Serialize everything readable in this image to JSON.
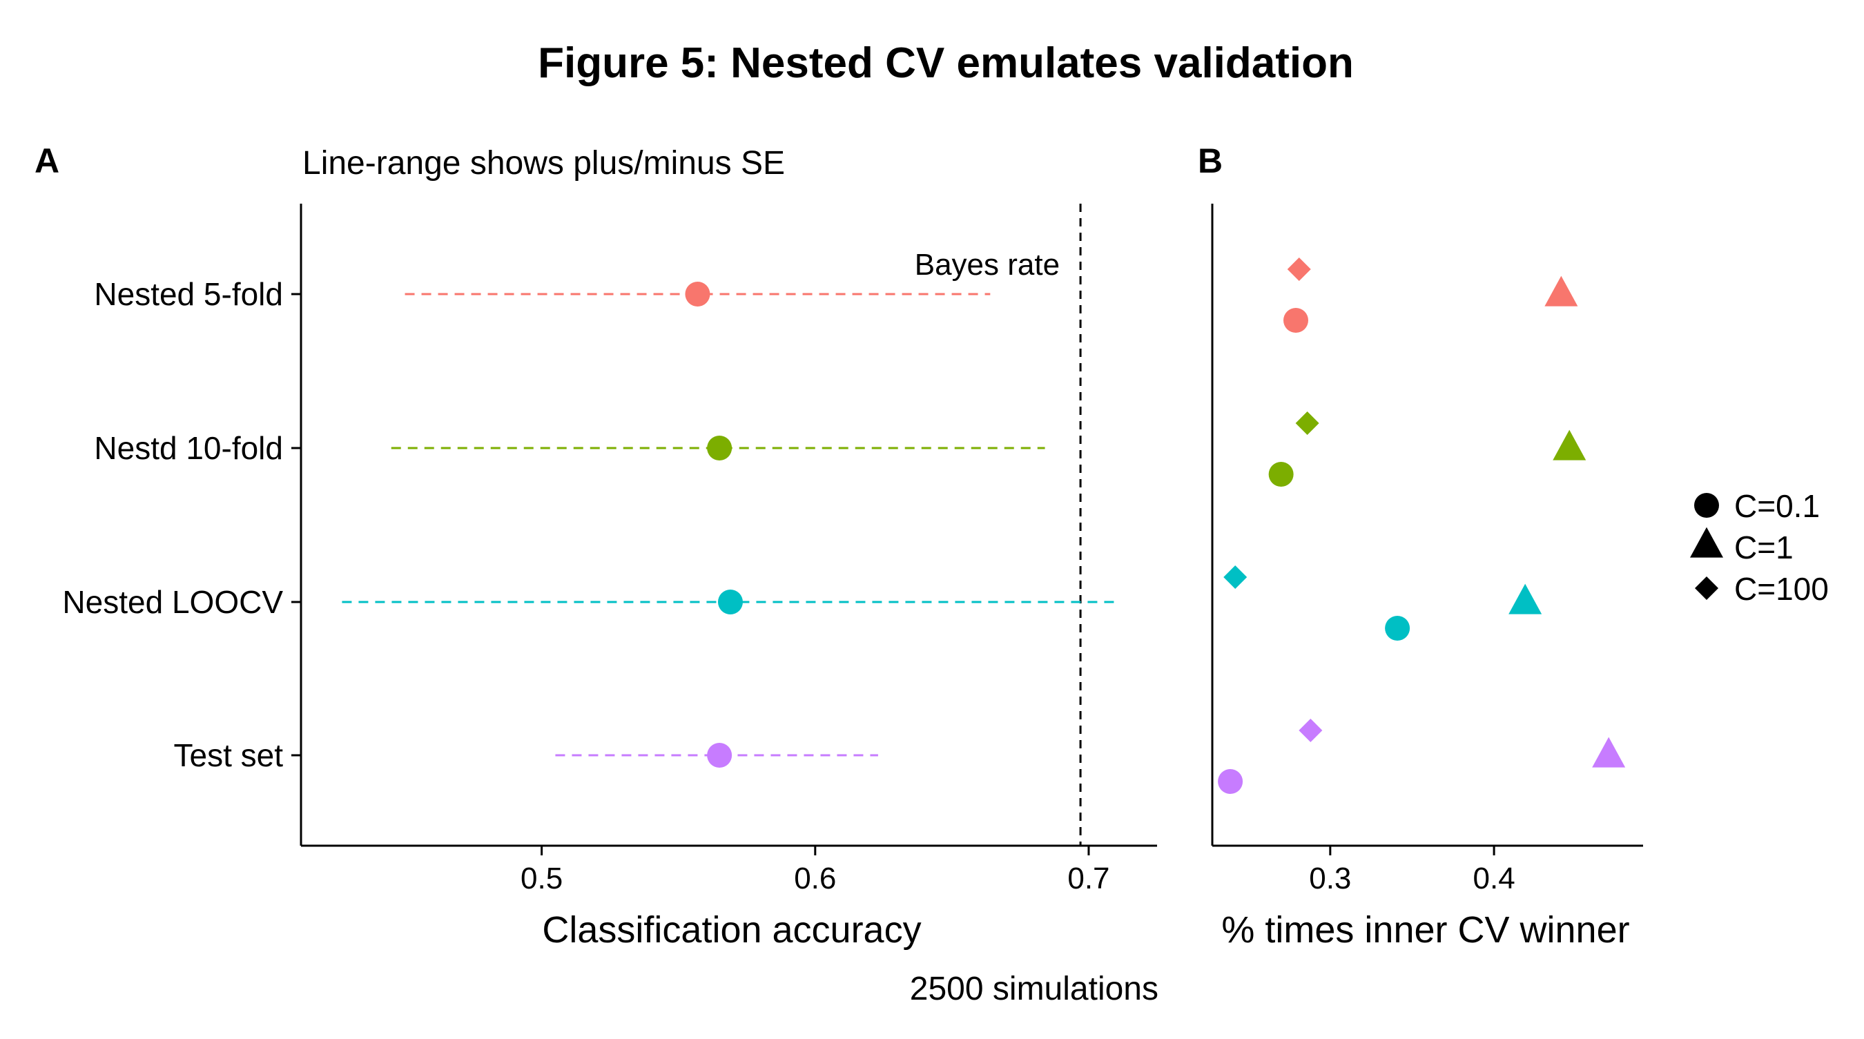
{
  "figure": {
    "title": "Figure 5: Nested CV emulates validation",
    "caption": "2500 simulations"
  },
  "colors": {
    "series": [
      "#F8766D",
      "#7CAE00",
      "#00BFC4",
      "#C77CFF"
    ],
    "axis": "#000000",
    "reference_line": "#000000"
  },
  "chart_data": [
    {
      "panel_label": "A",
      "type": "scatter",
      "subtitle": "Line-range shows plus/minus SE",
      "xlabel": "Classification accuracy",
      "ylabel": "",
      "xlim": [
        0.412,
        0.725
      ],
      "x_ticks": [
        0.5,
        0.6,
        0.7
      ],
      "x_tick_labels": [
        "0.5",
        "0.6",
        "0.7"
      ],
      "categories": [
        "Nested 5-fold",
        "Nestd 10-fold",
        "Nested LOOCV",
        "Test set"
      ],
      "points": [
        {
          "category": "Nested 5-fold",
          "mean": 0.557,
          "low": 0.45,
          "high": 0.664
        },
        {
          "category": "Nestd 10-fold",
          "mean": 0.565,
          "low": 0.445,
          "high": 0.684
        },
        {
          "category": "Nested LOOCV",
          "mean": 0.569,
          "low": 0.427,
          "high": 0.711
        },
        {
          "category": "Test set",
          "mean": 0.565,
          "low": 0.505,
          "high": 0.623
        }
      ],
      "reference_line": {
        "x": 0.697,
        "label": "Bayes rate"
      },
      "grid": false
    },
    {
      "panel_label": "B",
      "type": "scatter",
      "xlabel": "% times inner CV winner",
      "ylabel": "",
      "xlim": [
        0.228,
        0.491
      ],
      "x_ticks": [
        0.3,
        0.4
      ],
      "x_tick_labels": [
        "0.3",
        "0.4"
      ],
      "categories": [
        "Nested 5-fold",
        "Nestd 10-fold",
        "Nested LOOCV",
        "Test set"
      ],
      "series": [
        {
          "name": "C=0.1",
          "shape": "circle",
          "values": [
            0.279,
            0.27,
            0.341,
            0.239
          ]
        },
        {
          "name": "C=1",
          "shape": "triangle",
          "values": [
            0.441,
            0.446,
            0.419,
            0.47
          ]
        },
        {
          "name": "C=100",
          "shape": "diamond",
          "values": [
            0.281,
            0.286,
            0.242,
            0.288
          ]
        }
      ],
      "legend_position": "right",
      "grid": false
    }
  ]
}
